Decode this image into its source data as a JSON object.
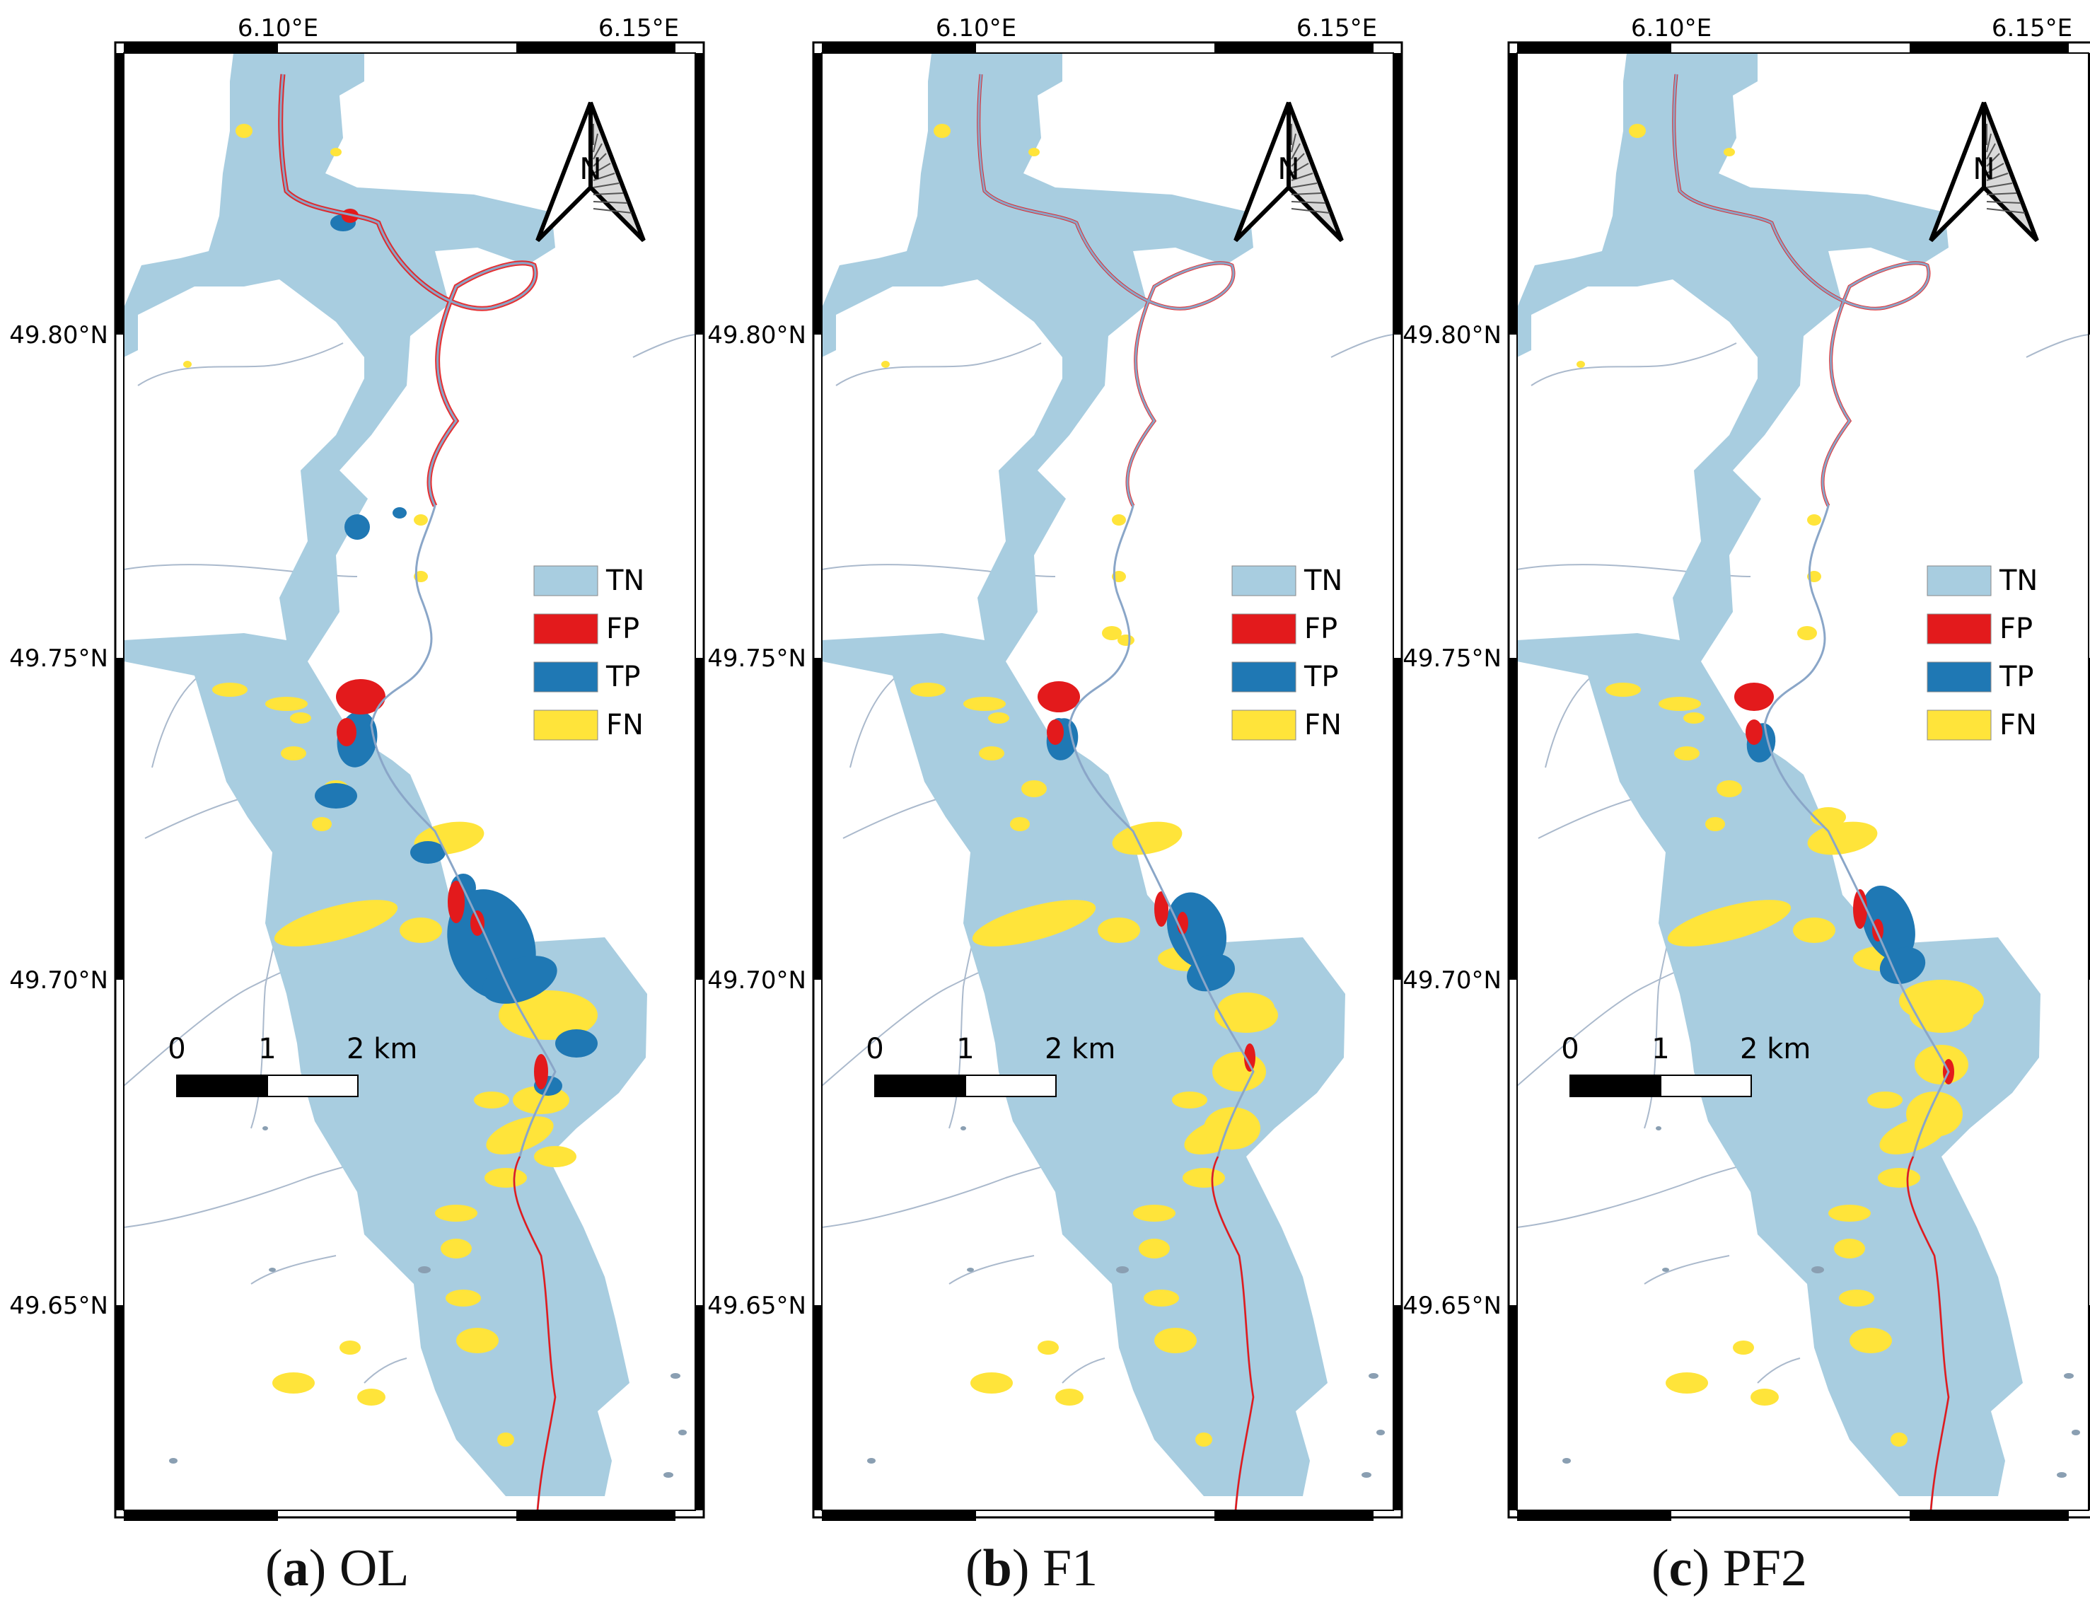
{
  "figure": {
    "lon_labels": [
      "6.10°E",
      "6.15°E"
    ],
    "lat_labels": [
      "49.80°N",
      "49.75°N",
      "49.70°N",
      "49.65°N"
    ],
    "north_arrow_letter": "N",
    "scalebar_labels": [
      "0",
      "1",
      "2 km"
    ],
    "legend": [
      {
        "label": "TN",
        "color": "#a8cde0"
      },
      {
        "label": "FP",
        "color": "#e31a1c"
      },
      {
        "label": "TP",
        "color": "#1f78b4"
      },
      {
        "label": "FN",
        "color": "#ffe43a"
      }
    ],
    "panels": [
      {
        "letter": "(",
        "bold": "a",
        "close": ")",
        "name": "OL"
      },
      {
        "letter": "(",
        "bold": "b",
        "close": ")",
        "name": "F1"
      },
      {
        "letter": "(",
        "bold": "c",
        "close": ")",
        "name": "PF2"
      }
    ]
  },
  "colors": {
    "tn": "#a8cde0",
    "fp": "#e31a1c",
    "tp": "#1f78b4",
    "fn": "#ffe43a",
    "river_channel": "#8aa6c8",
    "stream": "#aab9cc",
    "frame": "#000000"
  }
}
